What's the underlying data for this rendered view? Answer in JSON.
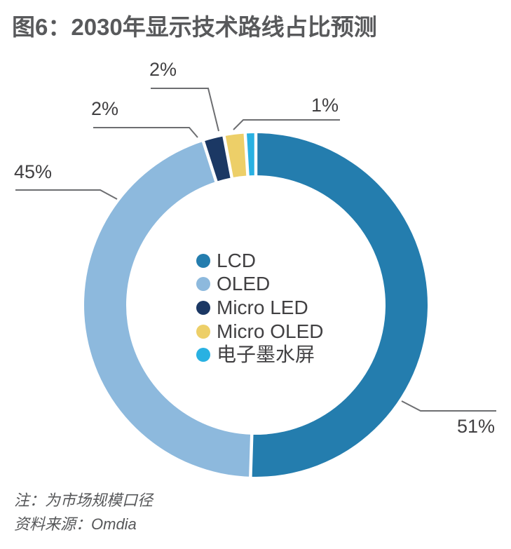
{
  "title": "图6：2030年显示技术路线占比预测",
  "chart_data": {
    "type": "pie",
    "subtype": "donut",
    "title": "2030年显示技术路线占比预测",
    "unit": "%",
    "start_angle_deg": 0,
    "direction": "clockwise",
    "donut_inner_ratio": 0.755,
    "legend_position": "center",
    "series": [
      {
        "name": "LCD",
        "value": 51,
        "label": "51%",
        "color": "#247DAE"
      },
      {
        "name": "OLED",
        "value": 45,
        "label": "45%",
        "color": "#8DB9DD"
      },
      {
        "name": "Micro LED",
        "value": 2,
        "label": "2%",
        "color": "#1B3864"
      },
      {
        "name": "Micro OLED",
        "value": 2,
        "label": "2%",
        "color": "#EDCF68"
      },
      {
        "name": "电子墨水屏",
        "value": 1,
        "label": "1%",
        "color": "#29B1E2"
      }
    ],
    "colors": {
      "leader_line": "#6D6E71",
      "label_text": "#414042",
      "title_text": "#58595B",
      "slice_gap": "#FFFFFF"
    }
  },
  "notes": {
    "note": "注：为市场规模口径",
    "source": "资料来源：Omdia"
  }
}
